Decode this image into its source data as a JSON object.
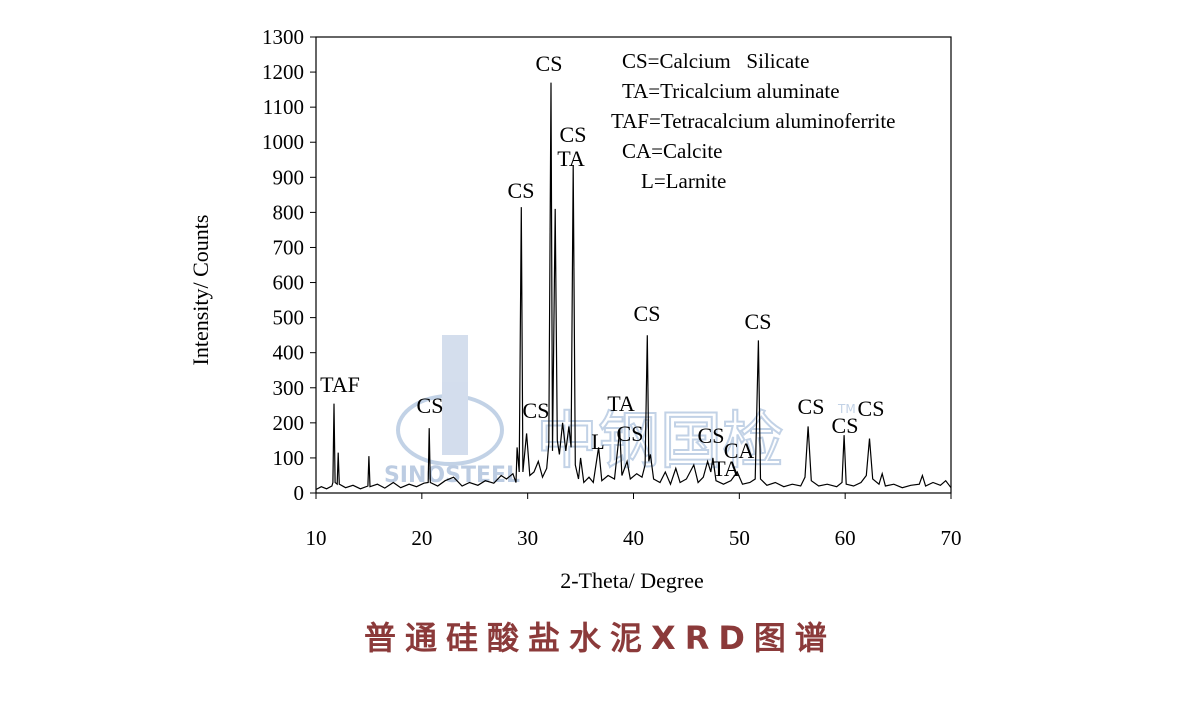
{
  "chart_data": {
    "type": "line",
    "xlabel": "2-Theta/ Degree",
    "ylabel": "Intensity/ Counts",
    "caption": "普通硅酸盐水泥XRD图谱",
    "color": "#000000",
    "xlim": [
      10,
      70
    ],
    "xticks": [
      10,
      20,
      30,
      40,
      50,
      60,
      70
    ],
    "ylim": [
      0,
      1300
    ],
    "yticks": [
      0,
      100,
      200,
      300,
      400,
      500,
      600,
      700,
      800,
      900,
      1000,
      1100,
      1200,
      1300
    ],
    "x": [
      10.0,
      10.5,
      11.0,
      11.5,
      11.6,
      11.7,
      11.8,
      12.0,
      12.1,
      12.2,
      12.8,
      13.5,
      14.2,
      14.9,
      15.0,
      15.1,
      15.8,
      16.5,
      17.3,
      18.0,
      18.8,
      19.5,
      20.2,
      20.6,
      20.7,
      20.8,
      21.5,
      22.2,
      23.0,
      23.8,
      24.5,
      25.3,
      26.0,
      26.8,
      27.5,
      28.0,
      28.6,
      28.9,
      29.0,
      29.2,
      29.4,
      29.55,
      29.9,
      30.2,
      30.6,
      31.0,
      31.4,
      31.8,
      32.0,
      32.2,
      32.35,
      32.6,
      32.8,
      33.0,
      33.3,
      33.6,
      33.9,
      34.1,
      34.3,
      34.5,
      34.8,
      35.0,
      35.3,
      35.8,
      36.2,
      36.7,
      37.0,
      37.6,
      38.2,
      38.7,
      38.9,
      39.4,
      39.7,
      40.3,
      40.8,
      41.1,
      41.3,
      41.45,
      41.6,
      41.9,
      42.5,
      43.0,
      43.5,
      44.0,
      44.4,
      45.0,
      45.7,
      46.1,
      46.6,
      47.0,
      47.3,
      47.5,
      47.8,
      48.5,
      49.2,
      49.8,
      50.3,
      51.0,
      51.5,
      51.8,
      52.0,
      52.6,
      53.4,
      54.2,
      55.0,
      55.8,
      56.2,
      56.5,
      56.8,
      57.5,
      58.3,
      59.2,
      59.7,
      59.9,
      60.1,
      60.8,
      61.5,
      62.0,
      62.3,
      62.6,
      63.2,
      63.5,
      63.8,
      64.6,
      65.4,
      66.2,
      67.0,
      67.3,
      67.6,
      68.3,
      69.0,
      69.5,
      70.0
    ],
    "values": [
      10,
      18,
      12,
      20,
      30,
      255,
      30,
      25,
      115,
      25,
      15,
      22,
      12,
      20,
      105,
      18,
      25,
      14,
      30,
      15,
      25,
      18,
      28,
      30,
      185,
      30,
      20,
      35,
      45,
      20,
      30,
      22,
      35,
      28,
      50,
      40,
      55,
      30,
      130,
      60,
      815,
      60,
      170,
      50,
      60,
      90,
      45,
      70,
      140,
      1170,
      120,
      810,
      150,
      110,
      200,
      120,
      190,
      130,
      935,
      80,
      40,
      100,
      30,
      45,
      30,
      130,
      35,
      50,
      40,
      180,
      50,
      90,
      40,
      55,
      45,
      80,
      450,
      90,
      110,
      40,
      30,
      60,
      25,
      70,
      30,
      40,
      80,
      30,
      45,
      90,
      60,
      100,
      35,
      25,
      35,
      60,
      25,
      30,
      40,
      435,
      40,
      22,
      30,
      18,
      25,
      20,
      45,
      190,
      35,
      20,
      25,
      18,
      30,
      165,
      25,
      20,
      30,
      50,
      155,
      40,
      25,
      55,
      20,
      25,
      15,
      22,
      25,
      50,
      20,
      30,
      22,
      35,
      15
    ],
    "annotations": [
      "TAF",
      "CS",
      "CS",
      "CS",
      "CS",
      "TA",
      "CS",
      "L",
      "TA",
      "CS",
      "CS",
      "CS",
      "CA",
      "TA",
      "CS",
      "CS",
      "CS",
      "CS"
    ],
    "legend_notes": [
      "CS=Calcium   Silicate",
      "TA=Tricalcium aluminate",
      "TAF=Tetracalcium aluminoferrite",
      "CA=Calcite",
      "L=Larnite"
    ],
    "watermark": {
      "text": "中钢国检",
      "logo_text": "SINOSTEEL",
      "mark": "TM"
    }
  }
}
